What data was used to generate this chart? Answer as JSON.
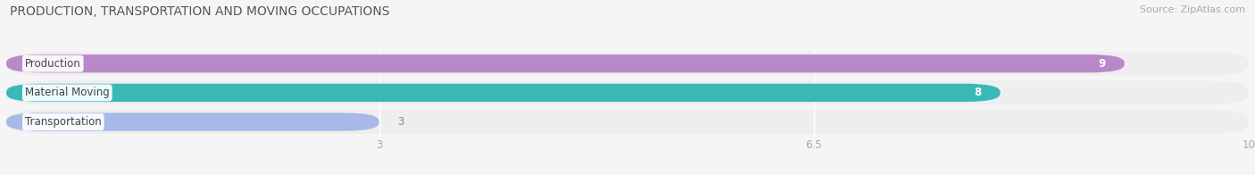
{
  "title": "PRODUCTION, TRANSPORTATION AND MOVING OCCUPATIONS",
  "source": "Source: ZipAtlas.com",
  "categories": [
    "Production",
    "Material Moving",
    "Transportation"
  ],
  "values": [
    9,
    8,
    3
  ],
  "bar_colors": [
    "#b888c8",
    "#3ab8b8",
    "#a8b8e8"
  ],
  "value_label_colors": [
    "white",
    "white",
    "#888888"
  ],
  "value_label_inside": [
    true,
    true,
    false
  ],
  "xlim": [
    0,
    10
  ],
  "xticks": [
    3,
    6.5,
    10
  ],
  "bar_height": 0.62,
  "row_bg_color": "#eeeeee",
  "fig_bg_color": "#f5f5f5",
  "title_color": "#555555",
  "source_color": "#aaaaaa",
  "tick_color": "#aaaaaa"
}
